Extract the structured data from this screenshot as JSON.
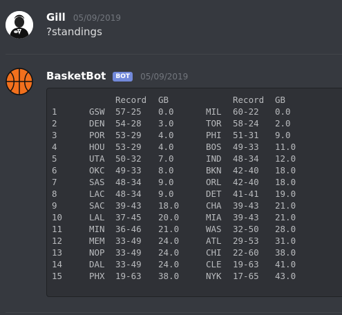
{
  "messages": [
    {
      "username": "Gill",
      "timestamp": "05/09/2019",
      "content": "?standings"
    },
    {
      "username": "BasketBot",
      "bot_tag": "BOT",
      "timestamp": "05/09/2019"
    }
  ],
  "standings": {
    "headers": {
      "record": "Record",
      "gb": "GB"
    },
    "rows": [
      {
        "rank": "1",
        "west_team": "GSW",
        "west_record": "57-25",
        "west_gb": "0.0",
        "east_team": "MIL",
        "east_record": "60-22",
        "east_gb": "0.0"
      },
      {
        "rank": "2",
        "west_team": "DEN",
        "west_record": "54-28",
        "west_gb": "3.0",
        "east_team": "TOR",
        "east_record": "58-24",
        "east_gb": "2.0"
      },
      {
        "rank": "3",
        "west_team": "POR",
        "west_record": "53-29",
        "west_gb": "4.0",
        "east_team": "PHI",
        "east_record": "51-31",
        "east_gb": "9.0"
      },
      {
        "rank": "4",
        "west_team": "HOU",
        "west_record": "53-29",
        "west_gb": "4.0",
        "east_team": "BOS",
        "east_record": "49-33",
        "east_gb": "11.0"
      },
      {
        "rank": "5",
        "west_team": "UTA",
        "west_record": "50-32",
        "west_gb": "7.0",
        "east_team": "IND",
        "east_record": "48-34",
        "east_gb": "12.0"
      },
      {
        "rank": "6",
        "west_team": "OKC",
        "west_record": "49-33",
        "west_gb": "8.0",
        "east_team": "BKN",
        "east_record": "42-40",
        "east_gb": "18.0"
      },
      {
        "rank": "7",
        "west_team": "SAS",
        "west_record": "48-34",
        "west_gb": "9.0",
        "east_team": "ORL",
        "east_record": "42-40",
        "east_gb": "18.0"
      },
      {
        "rank": "8",
        "west_team": "LAC",
        "west_record": "48-34",
        "west_gb": "9.0",
        "east_team": "DET",
        "east_record": "41-41",
        "east_gb": "19.0"
      },
      {
        "rank": "9",
        "west_team": "SAC",
        "west_record": "39-43",
        "west_gb": "18.0",
        "east_team": "CHA",
        "east_record": "39-43",
        "east_gb": "21.0"
      },
      {
        "rank": "10",
        "west_team": "LAL",
        "west_record": "37-45",
        "west_gb": "20.0",
        "east_team": "MIA",
        "east_record": "39-43",
        "east_gb": "21.0"
      },
      {
        "rank": "11",
        "west_team": "MIN",
        "west_record": "36-46",
        "west_gb": "21.0",
        "east_team": "WAS",
        "east_record": "32-50",
        "east_gb": "28.0"
      },
      {
        "rank": "12",
        "west_team": "MEM",
        "west_record": "33-49",
        "west_gb": "24.0",
        "east_team": "ATL",
        "east_record": "29-53",
        "east_gb": "31.0"
      },
      {
        "rank": "13",
        "west_team": "NOP",
        "west_record": "33-49",
        "west_gb": "24.0",
        "east_team": "CHI",
        "east_record": "22-60",
        "east_gb": "38.0"
      },
      {
        "rank": "14",
        "west_team": "DAL",
        "west_record": "33-49",
        "west_gb": "24.0",
        "east_team": "CLE",
        "east_record": "19-63",
        "east_gb": "41.0"
      },
      {
        "rank": "15",
        "west_team": "PHX",
        "west_record": "19-63",
        "west_gb": "38.0",
        "east_team": "NYK",
        "east_record": "17-65",
        "east_gb": "43.0"
      }
    ]
  }
}
